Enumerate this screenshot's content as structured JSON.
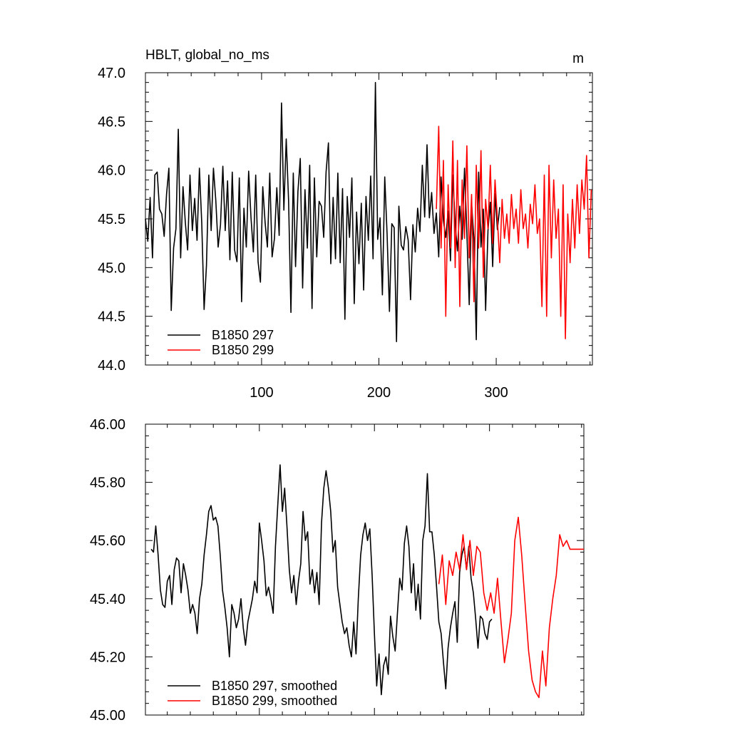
{
  "header": {
    "title": "HBLT, global_no_ms",
    "units": "m"
  },
  "colors": {
    "run_297": "#000000",
    "run_299": "#ff0000"
  },
  "chart_data": [
    {
      "type": "line",
      "panel": "top",
      "xlim": [
        1,
        382
      ],
      "ylim": [
        44.0,
        47.0
      ],
      "x_ticks": [
        100,
        200,
        300
      ],
      "y_ticks": [
        {
          "value": 44.0,
          "label": "44.0"
        },
        {
          "value": 44.5,
          "label": "44.5"
        },
        {
          "value": 45.0,
          "label": "45.0"
        },
        {
          "value": 45.5,
          "label": "45.5"
        },
        {
          "value": 46.0,
          "label": "46.0"
        },
        {
          "value": 46.5,
          "label": "46.5"
        },
        {
          "value": 47.0,
          "label": "47.0"
        }
      ],
      "legend_position": "bottom-left",
      "series": [
        {
          "name": "B1850 297",
          "color": "#000000",
          "x": [
            1,
            3,
            5,
            7,
            9,
            11,
            13,
            15,
            17,
            19,
            21,
            23,
            25,
            27,
            29,
            31,
            33,
            35,
            37,
            39,
            41,
            43,
            45,
            47,
            49,
            51,
            53,
            55,
            57,
            59,
            61,
            63,
            65,
            67,
            69,
            71,
            73,
            75,
            77,
            79,
            81,
            83,
            85,
            87,
            89,
            91,
            93,
            95,
            97,
            99,
            101,
            103,
            105,
            107,
            109,
            111,
            113,
            115,
            117,
            119,
            121,
            123,
            125,
            127,
            129,
            131,
            133,
            135,
            137,
            139,
            141,
            143,
            145,
            147,
            149,
            151,
            153,
            155,
            157,
            159,
            161,
            163,
            165,
            167,
            169,
            171,
            173,
            175,
            177,
            179,
            181,
            183,
            185,
            187,
            189,
            191,
            193,
            195,
            197,
            199,
            201,
            203,
            205,
            207,
            209,
            211,
            213,
            215,
            217,
            219,
            221,
            223,
            225,
            227,
            229,
            231,
            233,
            235,
            237,
            239,
            241,
            243,
            245,
            247,
            249,
            251,
            253,
            255,
            257,
            259,
            261,
            263,
            265,
            267,
            269,
            271,
            273,
            275,
            277,
            279,
            281,
            283,
            285,
            287,
            289,
            291,
            293,
            295,
            297,
            299,
            301,
            303
          ],
          "values": [
            45.5,
            45.27,
            45.72,
            45.1,
            45.95,
            45.98,
            45.6,
            45.55,
            45.32,
            45.75,
            46.02,
            44.56,
            45.2,
            45.4,
            46.42,
            45.1,
            45.83,
            45.46,
            45.18,
            45.95,
            45.38,
            45.71,
            45.28,
            46.02,
            45.46,
            44.57,
            45.02,
            45.95,
            45.38,
            46.02,
            45.69,
            45.21,
            45.44,
            46.04,
            45.38,
            45.89,
            45.08,
            45.98,
            45.18,
            45.06,
            45.92,
            44.65,
            45.61,
            45.21,
            45.99,
            45.51,
            45.16,
            45.95,
            45.06,
            44.85,
            45.83,
            45.46,
            45.21,
            45.97,
            45.11,
            45.3,
            45.82,
            45.33,
            46.69,
            45.59,
            46.32,
            45.69,
            44.54,
            45.97,
            45.01,
            45.78,
            46.12,
            44.79,
            45.8,
            45.2,
            46.05,
            44.58,
            45.92,
            45.11,
            45.68,
            45.63,
            45.31,
            45.98,
            46.28,
            45.04,
            45.72,
            45.09,
            45.97,
            45.05,
            45.81,
            44.47,
            45.73,
            45.31,
            45.92,
            44.63,
            45.57,
            45.04,
            45.66,
            44.77,
            45.73,
            45.28,
            45.94,
            45.09,
            46.9,
            45.29,
            45.51,
            44.72,
            45.93,
            45.34,
            44.55,
            45.45,
            45.41,
            44.24,
            45.63,
            45.23,
            45.18,
            45.42,
            45.28,
            44.67,
            45.44,
            45.16,
            45.61,
            45.37,
            46.05,
            45.52,
            46.26,
            45.51,
            45.77,
            45.35,
            45.56,
            45.11,
            45.93,
            45.48,
            45.31,
            45.58,
            45.07,
            45.95,
            45.45,
            45.17,
            45.63,
            45.29,
            46.02,
            45.36,
            44.62,
            45.66,
            45.29,
            44.26,
            45.98,
            45.21,
            45.6,
            44.56,
            45.38,
            45.67,
            45.01,
            45.76,
            45.39,
            45.62
          ]
        },
        {
          "name": "B1850 299",
          "color": "#ff0000",
          "x": [
            249,
            251,
            253,
            255,
            257,
            259,
            261,
            263,
            265,
            267,
            269,
            271,
            273,
            275,
            277,
            279,
            281,
            283,
            285,
            287,
            289,
            291,
            293,
            295,
            297,
            299,
            301,
            303,
            305,
            307,
            309,
            311,
            313,
            315,
            317,
            319,
            321,
            323,
            325,
            327,
            329,
            331,
            333,
            335,
            337,
            339,
            341,
            343,
            345,
            347,
            349,
            351,
            353,
            355,
            357,
            359,
            361,
            363,
            365,
            367,
            369,
            371,
            373,
            375,
            377,
            379,
            381
          ],
          "values": [
            45.6,
            46.45,
            45.2,
            46.1,
            44.5,
            45.85,
            45.2,
            46.3,
            45.0,
            46.1,
            44.6,
            45.9,
            45.3,
            46.25,
            45.1,
            45.75,
            44.65,
            46.05,
            45.2,
            46.2,
            44.9,
            45.7,
            45.4,
            46.05,
            45.25,
            45.9,
            45.5,
            45.05,
            45.7,
            45.3,
            45.55,
            45.25,
            45.75,
            45.4,
            45.6,
            45.25,
            45.8,
            45.4,
            45.55,
            45.2,
            45.65,
            45.45,
            45.85,
            45.35,
            45.5,
            44.6,
            45.95,
            44.5,
            46.05,
            45.1,
            45.9,
            45.3,
            45.6,
            44.5,
            45.85,
            44.27,
            45.55,
            45.05,
            45.7,
            45.2,
            45.85,
            45.35,
            45.9,
            45.6,
            46.15,
            45.1,
            45.8
          ]
        }
      ]
    },
    {
      "type": "line",
      "panel": "bottom",
      "xlim": [
        1,
        382
      ],
      "ylim": [
        45.0,
        46.0
      ],
      "y_ticks": [
        {
          "value": 45.0,
          "label": "45.00"
        },
        {
          "value": 45.2,
          "label": "45.20"
        },
        {
          "value": 45.4,
          "label": "45.40"
        },
        {
          "value": 45.6,
          "label": "45.60"
        },
        {
          "value": 45.8,
          "label": "45.80"
        },
        {
          "value": 46.0,
          "label": "46.00"
        }
      ],
      "legend_position": "bottom-left",
      "series": [
        {
          "name": "B1850 297, smoothed",
          "color": "#000000",
          "x": [
            6,
            8,
            10,
            12,
            14,
            16,
            18,
            20,
            22,
            24,
            26,
            28,
            30,
            32,
            34,
            36,
            38,
            40,
            42,
            44,
            46,
            48,
            50,
            52,
            54,
            56,
            58,
            60,
            62,
            64,
            66,
            68,
            70,
            72,
            74,
            76,
            78,
            80,
            82,
            84,
            86,
            88,
            90,
            92,
            94,
            96,
            98,
            100,
            102,
            104,
            106,
            108,
            110,
            112,
            114,
            116,
            118,
            120,
            122,
            124,
            126,
            128,
            130,
            132,
            134,
            136,
            138,
            140,
            142,
            144,
            146,
            148,
            150,
            152,
            154,
            156,
            158,
            160,
            162,
            164,
            166,
            168,
            170,
            172,
            174,
            176,
            178,
            180,
            182,
            184,
            186,
            188,
            190,
            192,
            194,
            196,
            198,
            200,
            202,
            204,
            206,
            208,
            210,
            212,
            214,
            216,
            218,
            220,
            222,
            224,
            226,
            228,
            230,
            232,
            234,
            236,
            238,
            240,
            242,
            244,
            246,
            248,
            250,
            252,
            254,
            256,
            258,
            260,
            262,
            264,
            266,
            268,
            270,
            272,
            274,
            276,
            278,
            280,
            282,
            284,
            286,
            288,
            290,
            292,
            294,
            296,
            298,
            300,
            302
          ],
          "values": [
            45.57,
            45.56,
            45.65,
            45.55,
            45.43,
            45.38,
            45.37,
            45.46,
            45.48,
            45.38,
            45.5,
            45.54,
            45.53,
            45.42,
            45.52,
            45.48,
            45.43,
            45.35,
            45.38,
            45.35,
            45.28,
            45.4,
            45.45,
            45.55,
            45.62,
            45.7,
            45.72,
            45.67,
            45.68,
            45.65,
            45.55,
            45.43,
            45.37,
            45.3,
            45.2,
            45.38,
            45.35,
            45.3,
            45.33,
            45.4,
            45.3,
            45.24,
            45.32,
            45.36,
            45.4,
            45.46,
            45.42,
            45.66,
            45.6,
            45.53,
            45.41,
            45.44,
            45.4,
            45.35,
            45.58,
            45.72,
            45.86,
            45.7,
            45.78,
            45.65,
            45.5,
            45.42,
            45.48,
            45.38,
            45.46,
            45.52,
            45.7,
            45.6,
            45.63,
            45.45,
            45.5,
            45.42,
            45.49,
            45.38,
            45.66,
            45.78,
            45.84,
            45.78,
            45.7,
            45.56,
            45.6,
            45.44,
            45.38,
            45.32,
            45.28,
            45.3,
            45.24,
            45.2,
            45.32,
            45.21,
            45.4,
            45.55,
            45.62,
            45.66,
            45.6,
            45.64,
            45.48,
            45.28,
            45.1,
            45.21,
            45.07,
            45.17,
            45.2,
            45.14,
            45.34,
            45.27,
            45.22,
            45.35,
            45.47,
            45.43,
            45.59,
            45.65,
            45.58,
            45.42,
            45.52,
            45.36,
            45.45,
            45.33,
            45.6,
            45.65,
            45.83,
            45.63,
            45.63,
            45.55,
            45.44,
            45.32,
            45.28,
            45.18,
            45.09,
            45.23,
            45.3,
            45.35,
            45.39,
            45.25,
            45.49,
            45.55,
            45.58,
            45.5,
            45.58,
            45.47,
            45.42,
            45.33,
            45.23,
            45.34,
            45.33,
            45.28,
            45.26,
            45.32,
            45.33
          ]
        },
        {
          "name": "B1850 299, smoothed",
          "color": "#ff0000",
          "x": [
            256,
            259,
            262,
            265,
            268,
            271,
            274,
            277,
            280,
            283,
            286,
            289,
            292,
            295,
            298,
            301,
            304,
            307,
            310,
            313,
            316,
            319,
            322,
            325,
            328,
            331,
            334,
            337,
            340,
            343,
            346,
            349,
            352,
            355,
            358,
            361,
            364,
            367,
            370,
            373,
            376,
            379,
            382
          ],
          "values": [
            45.45,
            45.55,
            45.38,
            45.53,
            45.48,
            45.56,
            45.5,
            45.62,
            45.5,
            45.6,
            45.48,
            45.58,
            45.56,
            45.42,
            45.36,
            45.42,
            45.35,
            45.47,
            45.32,
            45.18,
            45.26,
            45.35,
            45.6,
            45.68,
            45.55,
            45.38,
            45.22,
            45.12,
            45.08,
            45.06,
            45.22,
            45.1,
            45.3,
            45.4,
            45.48,
            45.62,
            45.58,
            45.6,
            45.57,
            45.57,
            45.57,
            45.57,
            45.57
          ]
        }
      ]
    }
  ]
}
